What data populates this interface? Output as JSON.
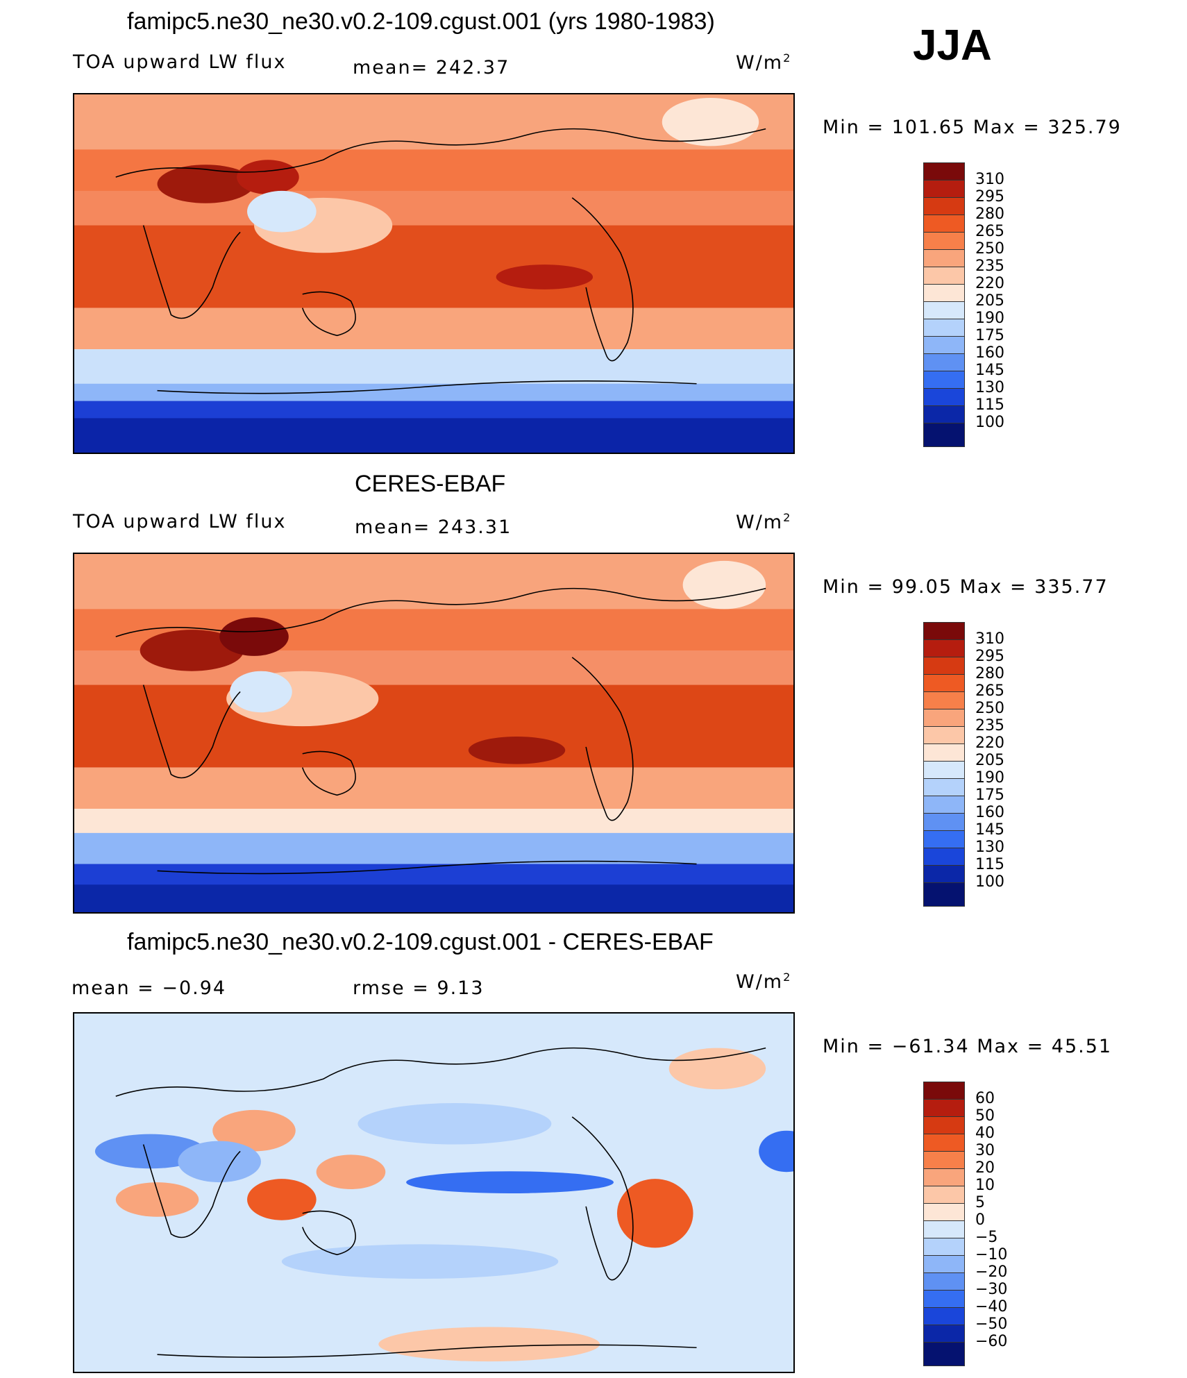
{
  "season": "JJA",
  "panels": [
    {
      "title": "famipc5.ne30_ne30.v0.2-109.cgust.001 (yrs 1980-1983)",
      "variable": "TOA upward LW flux",
      "stat_text": "mean=  242.37",
      "units_base": "W/m",
      "units_exp": "2",
      "minmax": "Min  =  101.65  Max  =  325.79",
      "colorbar": {
        "labels": [
          "310",
          "295",
          "280",
          "265",
          "250",
          "235",
          "220",
          "205",
          "190",
          "175",
          "160",
          "145",
          "130",
          "115",
          "100"
        ],
        "colors": [
          "#7a0a0a",
          "#b51d0f",
          "#d63a12",
          "#ee5a23",
          "#f7804a",
          "#f9a57c",
          "#fcc7a8",
          "#fde6d6",
          "#d6e8fb",
          "#b4d2fb",
          "#8eb6f8",
          "#5f91f3",
          "#356ef2",
          "#1a46da",
          "#0b27a8",
          "#051270"
        ]
      },
      "map": {
        "base_top": "#f8a47c",
        "tropics": "#e24e1c",
        "mid": "#f26a34",
        "south": "#cbe1fb",
        "antarctic": "#1c3fd4",
        "antarctic_deep": "#0b24a8"
      }
    },
    {
      "title": "CERES-EBAF",
      "variable": "TOA upward LW flux",
      "stat_text": "mean=  243.31",
      "units_base": "W/m",
      "units_exp": "2",
      "minmax": "Min  =    99.05  Max  =  335.77",
      "colorbar": {
        "labels": [
          "310",
          "295",
          "280",
          "265",
          "250",
          "235",
          "220",
          "205",
          "190",
          "175",
          "160",
          "145",
          "130",
          "115",
          "100"
        ],
        "colors": [
          "#7a0a0a",
          "#b51d0f",
          "#d63a12",
          "#ee5a23",
          "#f7804a",
          "#f9a57c",
          "#fcc7a8",
          "#fde6d6",
          "#d6e8fb",
          "#b4d2fb",
          "#8eb6f8",
          "#5f91f3",
          "#356ef2",
          "#1a46da",
          "#0b27a8",
          "#051270"
        ]
      },
      "map": {
        "base_top": "#f8a47c",
        "tropics": "#dd4716",
        "mid": "#f26a34",
        "south": "#fde6d6",
        "antarctic": "#1c3fd4",
        "antarctic_deep": "#0b27a8"
      }
    },
    {
      "title": "famipc5.ne30_ne30.v0.2-109.cgust.001 - CERES-EBAF",
      "stat_left": "mean  =     −0.94",
      "stat_text": "rmse  =      9.13",
      "units_base": "W/m",
      "units_exp": "2",
      "minmax": "Min  =  −61.34  Max  =    45.51",
      "colorbar": {
        "labels": [
          "60",
          "50",
          "40",
          "30",
          "20",
          "10",
          "5",
          "0",
          "−5",
          "−10",
          "−20",
          "−30",
          "−40",
          "−50",
          "−60"
        ],
        "colors": [
          "#7a0a0a",
          "#b51d0f",
          "#d63a12",
          "#ee5a23",
          "#f7804a",
          "#f9a57c",
          "#fcc7a8",
          "#fde6d6",
          "#d6e8fb",
          "#b4d2fb",
          "#8eb6f8",
          "#5f91f3",
          "#356ef2",
          "#1a46da",
          "#0b27a8",
          "#051270"
        ]
      },
      "map": {
        "base": "#d6e8fb",
        "warm": "#f9a57c",
        "cool": "#8eb6f8",
        "strong_cool": "#356ef2",
        "strong_warm": "#e24e1c"
      }
    }
  ]
}
